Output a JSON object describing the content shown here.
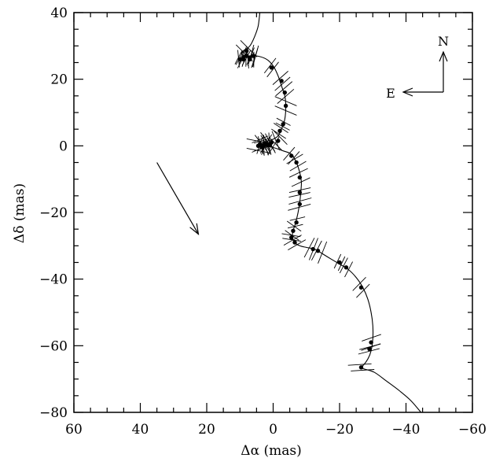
{
  "chart_data": {
    "type": "scatter",
    "xlabel": "Δα (mas)",
    "ylabel": "Δδ (mas)",
    "xlim": [
      60,
      -60
    ],
    "ylim": [
      -80,
      40
    ],
    "x_ticks": [
      60,
      40,
      20,
      0,
      -20,
      -40,
      -60
    ],
    "y_ticks": [
      40,
      20,
      0,
      -20,
      -40,
      -60,
      -80
    ],
    "x_tick_labels": [
      "60",
      "40",
      "20",
      "0",
      "−20",
      "−40",
      "−60"
    ],
    "y_tick_labels": [
      "40",
      "20",
      "0",
      "−20",
      "−40",
      "−60",
      "−80"
    ],
    "grid": false,
    "compass": {
      "north_label": "N",
      "east_label": "E"
    },
    "motion_arrow": {
      "from": [
        35,
        -5
      ],
      "to": [
        22.5,
        -26.5
      ]
    },
    "model_track": [
      [
        4,
        40
      ],
      [
        4.5,
        36
      ],
      [
        5.5,
        33
      ],
      [
        7,
        30
      ],
      [
        9,
        28.5
      ],
      [
        9.5,
        27.5
      ],
      [
        8,
        27
      ],
      [
        5,
        27
      ],
      [
        2,
        26
      ],
      [
        0,
        24
      ],
      [
        -1.5,
        21
      ],
      [
        -2.5,
        18
      ],
      [
        -3.5,
        15
      ],
      [
        -3.8,
        12
      ],
      [
        -3.5,
        8
      ],
      [
        -2.5,
        5
      ],
      [
        -1.5,
        3
      ],
      [
        0,
        2
      ],
      [
        1.5,
        1.5
      ],
      [
        3,
        0.8
      ],
      [
        4,
        0.3
      ],
      [
        3,
        0
      ],
      [
        0,
        -0.5
      ],
      [
        -3,
        -1.5
      ],
      [
        -5.5,
        -2.5
      ],
      [
        -7,
        -5
      ],
      [
        -8,
        -8
      ],
      [
        -8.5,
        -11
      ],
      [
        -8.3,
        -14
      ],
      [
        -8,
        -17
      ],
      [
        -7.5,
        -20
      ],
      [
        -6.8,
        -23
      ],
      [
        -6,
        -25.5
      ],
      [
        -5.8,
        -27.5
      ],
      [
        -6.5,
        -29
      ],
      [
        -8,
        -30
      ],
      [
        -10,
        -30.5
      ],
      [
        -12.5,
        -31
      ],
      [
        -15,
        -32.5
      ],
      [
        -17.5,
        -34
      ],
      [
        -20,
        -35.5
      ],
      [
        -22.5,
        -37
      ],
      [
        -25,
        -39.5
      ],
      [
        -27,
        -42.5
      ],
      [
        -28.5,
        -46
      ],
      [
        -29.5,
        -50
      ],
      [
        -30,
        -54
      ],
      [
        -30,
        -58
      ],
      [
        -29.5,
        -61.5
      ],
      [
        -28.5,
        -64
      ],
      [
        -27,
        -66
      ],
      [
        -26,
        -66.5
      ],
      [
        -27.5,
        -67
      ],
      [
        -30.5,
        -68
      ],
      [
        -34,
        -70.5
      ],
      [
        -38,
        -73.5
      ],
      [
        -41.5,
        -76.5
      ],
      [
        -44.5,
        -80
      ]
    ],
    "points": [
      [
        10,
        26
      ],
      [
        9,
        26.5
      ],
      [
        8,
        27
      ],
      [
        7,
        26.5
      ],
      [
        6,
        27
      ],
      [
        8,
        28.5
      ],
      [
        7,
        26
      ],
      [
        9,
        26
      ],
      [
        0.5,
        23.5
      ],
      [
        -2.5,
        19.5
      ],
      [
        -3.5,
        16
      ],
      [
        -3.8,
        12
      ],
      [
        -3,
        6.5
      ],
      [
        -2,
        4.5
      ],
      [
        -1.5,
        1.5
      ],
      [
        0.5,
        1
      ],
      [
        1.5,
        0.5
      ],
      [
        2.5,
        0.8
      ],
      [
        3.5,
        0.3
      ],
      [
        4,
        0.5
      ],
      [
        3,
        0
      ],
      [
        2,
        0.5
      ],
      [
        1,
        0.3
      ],
      [
        4.5,
        0
      ],
      [
        3.5,
        -0.3
      ],
      [
        -5.5,
        -3
      ],
      [
        -7,
        -5
      ],
      [
        -8,
        -9.5
      ],
      [
        -8,
        -14
      ],
      [
        -8,
        -17.5
      ],
      [
        -7,
        -23
      ],
      [
        -6,
        -25.5
      ],
      [
        -5.5,
        -27.5
      ],
      [
        -6.5,
        -29
      ],
      [
        -12,
        -31
      ],
      [
        -13.5,
        -31.5
      ],
      [
        -20,
        -35
      ],
      [
        -22,
        -36.5
      ],
      [
        -26.5,
        -42.5
      ],
      [
        -29.5,
        -59
      ],
      [
        -29,
        -61
      ],
      [
        -26.5,
        -66.5
      ]
    ]
  }
}
